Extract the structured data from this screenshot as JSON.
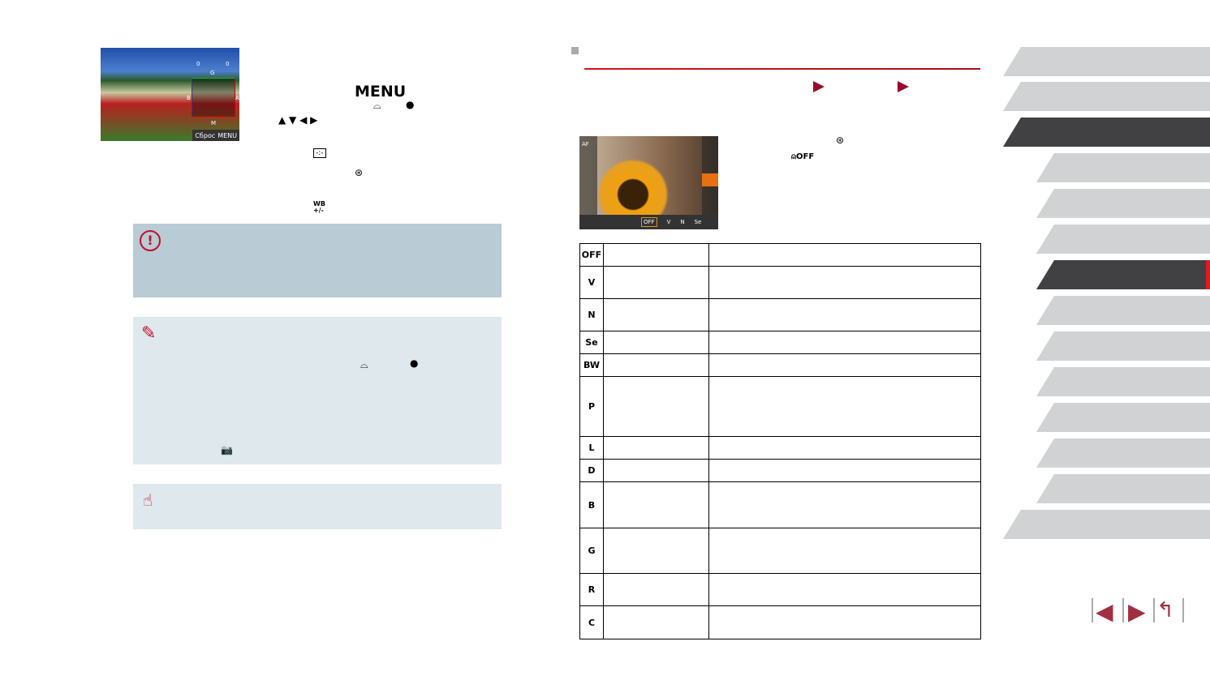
{
  "left": {
    "screen": {
      "axis": {
        "top": "G",
        "left": "B",
        "right": "A",
        "bottom": "M"
      },
      "values": [
        "0",
        "0"
      ],
      "reset_label": "Сброс",
      "menu_label": "MENU"
    },
    "menu_button": "MENU",
    "icons": [
      "main-dial",
      "control-dial",
      "up-down-left-right",
      "info-button",
      "func-set-button",
      "wb-plus-minus"
    ]
  },
  "right": {
    "screen": {
      "menu_label": "AF",
      "bottom_items": [
        "OFF",
        "V",
        "N",
        "Se"
      ]
    },
    "table": [
      {
        "icon": "OFF"
      },
      {
        "icon": "V"
      },
      {
        "icon": "N"
      },
      {
        "icon": "Se"
      },
      {
        "icon": "BW"
      },
      {
        "icon": "P"
      },
      {
        "icon": "L"
      },
      {
        "icon": "D"
      },
      {
        "icon": "B"
      },
      {
        "icon": "G"
      },
      {
        "icon": "R"
      },
      {
        "icon": "C"
      }
    ]
  },
  "colors": {
    "accent": "#d8101b",
    "nav": "#a03040",
    "tab_dark": "#414042",
    "tab_light": "#d1d2d4"
  }
}
